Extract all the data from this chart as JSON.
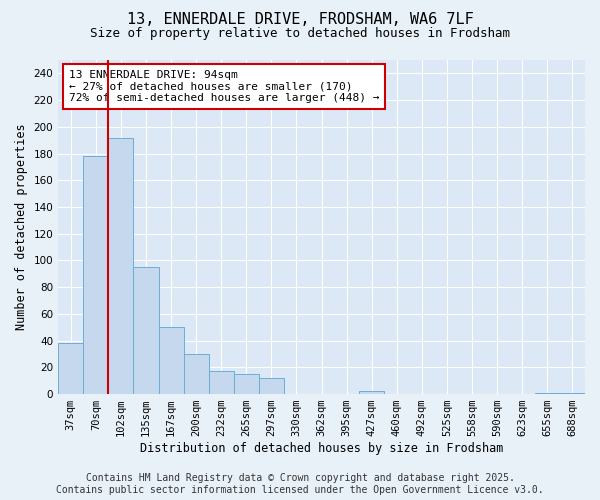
{
  "title1": "13, ENNERDALE DRIVE, FRODSHAM, WA6 7LF",
  "title2": "Size of property relative to detached houses in Frodsham",
  "xlabel": "Distribution of detached houses by size in Frodsham",
  "ylabel": "Number of detached properties",
  "categories": [
    "37sqm",
    "70sqm",
    "102sqm",
    "135sqm",
    "167sqm",
    "200sqm",
    "232sqm",
    "265sqm",
    "297sqm",
    "330sqm",
    "362sqm",
    "395sqm",
    "427sqm",
    "460sqm",
    "492sqm",
    "525sqm",
    "558sqm",
    "590sqm",
    "623sqm",
    "655sqm",
    "688sqm"
  ],
  "values": [
    38,
    178,
    192,
    95,
    50,
    30,
    17,
    15,
    12,
    0,
    0,
    0,
    2,
    0,
    0,
    0,
    0,
    0,
    0,
    1,
    1
  ],
  "bar_color": "#c5d8ee",
  "bar_edge_color": "#6aaed6",
  "property_line_x": 1.5,
  "annotation_text": "13 ENNERDALE DRIVE: 94sqm\n← 27% of detached houses are smaller (170)\n72% of semi-detached houses are larger (448) →",
  "annotation_box_color": "#ffffff",
  "annotation_box_edge_color": "#cc0000",
  "annotation_text_fontsize": 8,
  "line_color": "#cc0000",
  "ylim": [
    0,
    250
  ],
  "yticks": [
    0,
    20,
    40,
    60,
    80,
    100,
    120,
    140,
    160,
    180,
    200,
    220,
    240
  ],
  "footer_line1": "Contains HM Land Registry data © Crown copyright and database right 2025.",
  "footer_line2": "Contains public sector information licensed under the Open Government Licence v3.0.",
  "background_color": "#e8f0f8",
  "plot_bg_color": "#dce8f5",
  "title_fontsize": 11,
  "subtitle_fontsize": 9,
  "axis_label_fontsize": 8.5,
  "tick_fontsize": 7.5,
  "footer_fontsize": 7
}
